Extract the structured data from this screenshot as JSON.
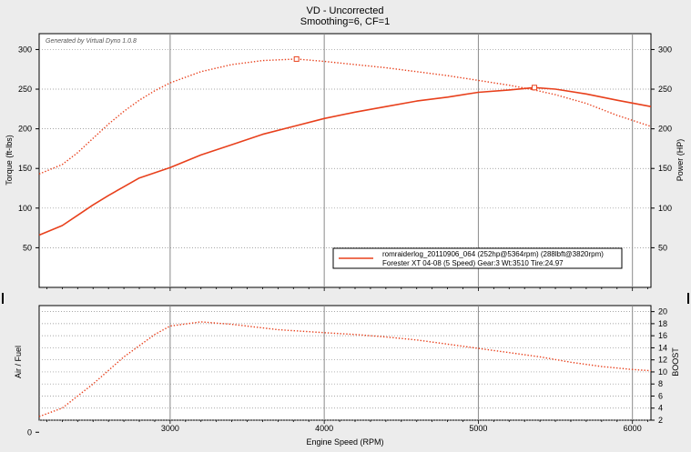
{
  "title": "VD - Uncorrected",
  "subtitle": "Smoothing=6, CF=1",
  "generated_by": "Generated by Virtual Dyno 1.0.8",
  "colors": {
    "series": "#e8401c",
    "grid": "#8a8a8a",
    "plot_bg": "#ffffff",
    "frame": "#000000"
  },
  "legend": {
    "line1": "romraiderlog_20110906_064 (252hp@5364rpm) (288lbft@3820rpm)",
    "line2": "Forester XT 04-08 (5 Speed) Gear:3 Wt:3510 Tire:24.97"
  },
  "xlabel": "Engine Speed (RPM)",
  "chart_data": [
    {
      "type": "line",
      "panel": "top",
      "ylabel_left": "Torque (ft-lbs)",
      "ylabel_right": "Power (HP)",
      "xlim": [
        2150,
        6120
      ],
      "ylim": [
        0,
        320
      ],
      "yticks_left": [
        50,
        100,
        150,
        200,
        250,
        300
      ],
      "yticks_right": [
        50,
        100,
        150,
        200,
        250,
        300
      ],
      "xticks": [
        3000,
        4000,
        5000,
        6000
      ],
      "grid": true,
      "legend_position": "bottom-right",
      "series": [
        {
          "style": "dotted",
          "x": [
            2150,
            2200,
            2300,
            2400,
            2500,
            2600,
            2700,
            2800,
            2900,
            3000,
            3200,
            3400,
            3600,
            3820,
            4000,
            4200,
            4400,
            4600,
            4800,
            5000,
            5200,
            5364,
            5500,
            5700,
            5900,
            6120
          ],
          "values": [
            143,
            147,
            155,
            170,
            188,
            206,
            222,
            236,
            248,
            258,
            272,
            281,
            286,
            288,
            285,
            281,
            277,
            272,
            267,
            261,
            255,
            249,
            243,
            232,
            217,
            203
          ],
          "marker_x": 3820,
          "marker_y": 288
        },
        {
          "style": "solid",
          "x": [
            2150,
            2200,
            2300,
            2400,
            2500,
            2600,
            2700,
            2800,
            3000,
            3200,
            3400,
            3600,
            3800,
            4000,
            4200,
            4400,
            4600,
            4800,
            5000,
            5200,
            5364,
            5500,
            5700,
            5900,
            6120
          ],
          "values": [
            66,
            70,
            78,
            91,
            104,
            116,
            127,
            138,
            151,
            167,
            180,
            193,
            203,
            213,
            221,
            228,
            235,
            240,
            246,
            249,
            252,
            250,
            244,
            236,
            228
          ],
          "marker_x": 5364,
          "marker_y": 252
        }
      ]
    },
    {
      "type": "line",
      "panel": "bottom",
      "ylabel_left": "Air / Fuel",
      "ylabel_right": "BOOST",
      "xlim": [
        2150,
        6120
      ],
      "ylim": [
        2,
        21
      ],
      "yticks_left": [
        0
      ],
      "yticks_right": [
        2,
        4,
        6,
        8,
        10,
        12,
        14,
        16,
        18,
        20
      ],
      "xticks": [
        3000,
        4000,
        5000,
        6000
      ],
      "grid": true,
      "series": [
        {
          "style": "dotted",
          "x": [
            2150,
            2300,
            2500,
            2700,
            2900,
            3000,
            3200,
            3400,
            3700,
            4000,
            4200,
            4400,
            4600,
            4800,
            5000,
            5200,
            5400,
            5600,
            5800,
            6000,
            6120
          ],
          "values": [
            2.6,
            4.0,
            8.0,
            12.5,
            16.2,
            17.6,
            18.3,
            17.9,
            17.0,
            16.5,
            16.2,
            15.8,
            15.3,
            14.6,
            13.9,
            13.2,
            12.5,
            11.6,
            10.9,
            10.4,
            10.2
          ]
        }
      ]
    }
  ]
}
